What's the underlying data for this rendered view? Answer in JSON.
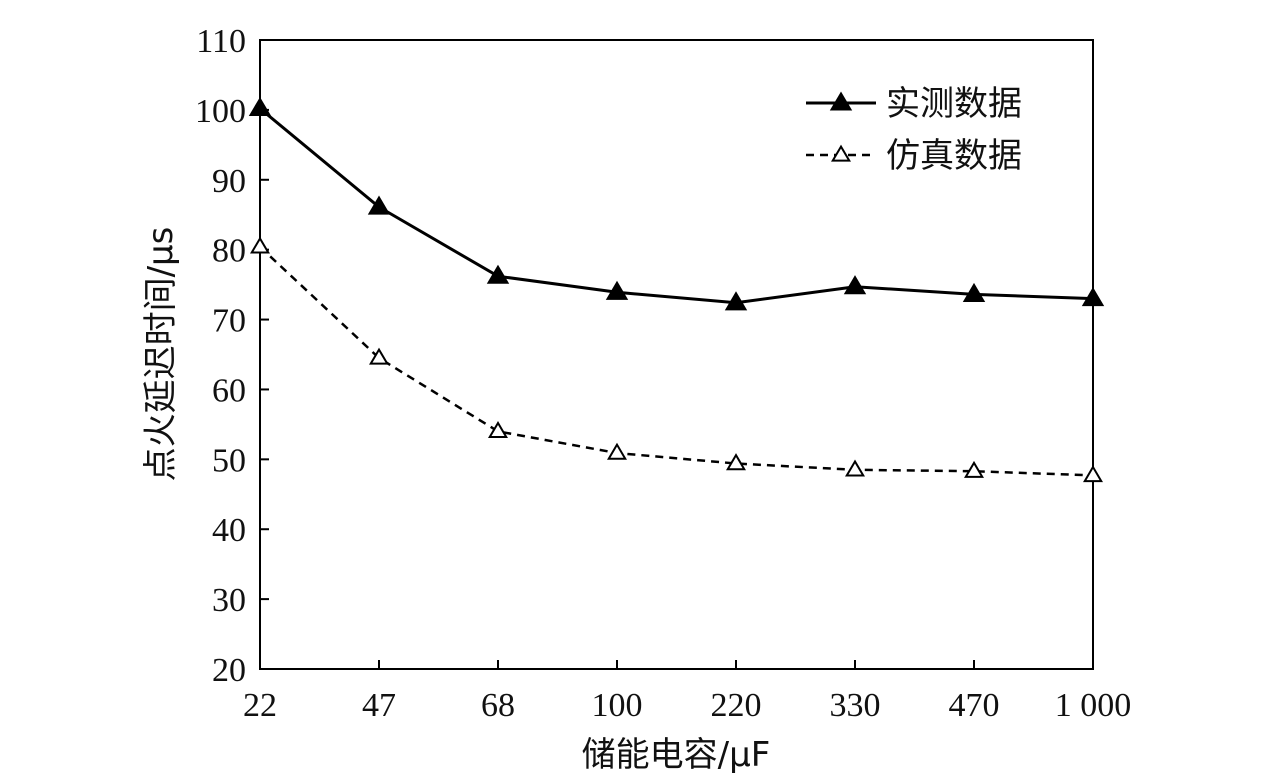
{
  "chart_data": {
    "type": "line",
    "categories": [
      "22",
      "47",
      "68",
      "100",
      "220",
      "330",
      "470",
      "1 000"
    ],
    "xlabel": "储能电容/μF",
    "ylabel": "点火延迟时间/μs",
    "ylim": [
      20,
      110
    ],
    "yticks": [
      20,
      30,
      40,
      50,
      60,
      70,
      80,
      90,
      100,
      110
    ],
    "grid": false,
    "legend_position": "top-right",
    "series": [
      {
        "name": "实测数据",
        "values": [
          100.2,
          86.1,
          76.2,
          73.9,
          72.4,
          74.7,
          73.6,
          73.0
        ],
        "line_style": "solid",
        "marker": "filled-triangle",
        "color": "#000000"
      },
      {
        "name": "仿真数据",
        "values": [
          80.4,
          64.5,
          54.0,
          50.9,
          49.4,
          48.5,
          48.3,
          47.7
        ],
        "line_style": "dashed",
        "marker": "open-triangle",
        "color": "#000000"
      }
    ]
  }
}
